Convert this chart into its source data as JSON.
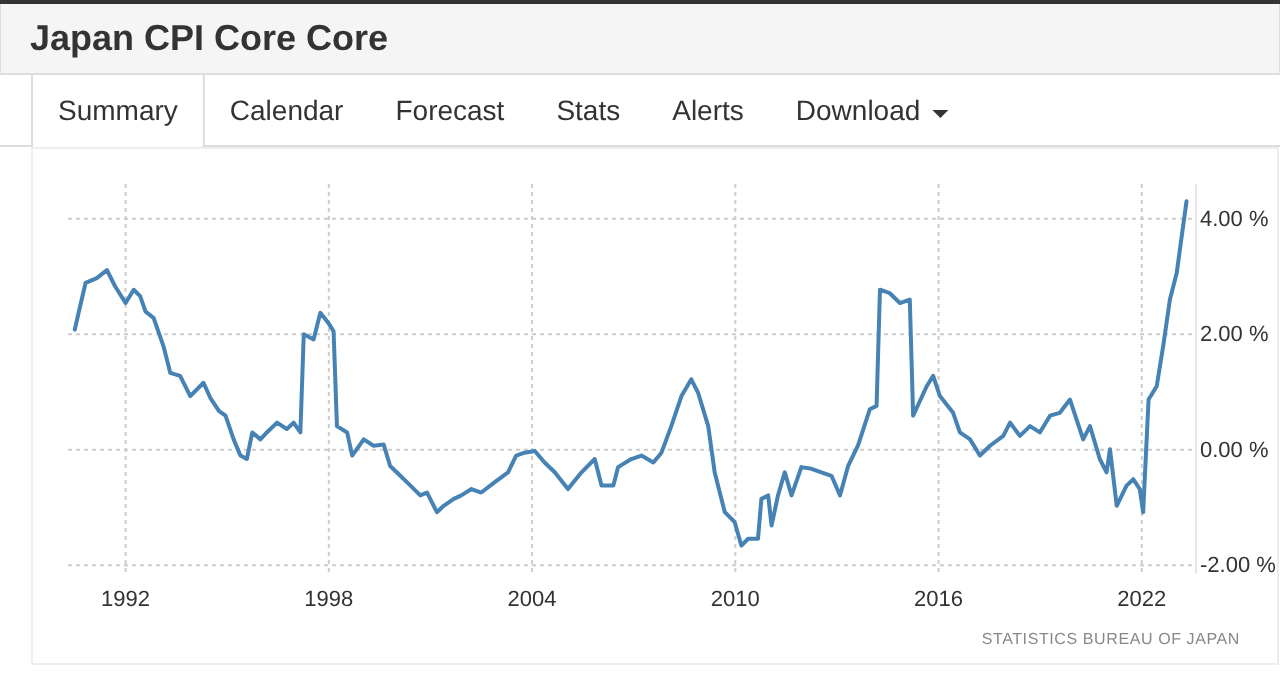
{
  "chart_data": {
    "type": "line",
    "title": "Japan CPI Core Core",
    "annotations": [
      "Summary",
      "Calendar",
      "Forecast",
      "Stats",
      "Alerts",
      "Download",
      "STATISTICS BUREAU OF JAPAN"
    ],
    "series": [
      {
        "color": "#4682b4",
        "x": [
          1990.5,
          1990.62,
          1990.82,
          1991.15,
          1991.45,
          1991.69,
          1992.0,
          1992.24,
          1992.43,
          1992.59,
          1992.83,
          1993.12,
          1993.32,
          1993.61,
          1993.91,
          1994.3,
          1994.5,
          1994.76,
          1994.95,
          1995.19,
          1995.39,
          1995.58,
          1995.74,
          1995.98,
          1996.17,
          1996.47,
          1996.76,
          1996.96,
          1997.16,
          1997.26,
          1997.55,
          1997.75,
          1997.98,
          1998.14,
          1998.24,
          1998.54,
          1998.69,
          1999.03,
          1999.32,
          1999.62,
          1999.81,
          2000.11,
          2000.41,
          2000.7,
          2000.9,
          2001.19,
          2001.39,
          2001.69,
          2001.91,
          2002.21,
          2002.5,
          2002.9,
          2003.29,
          2003.53,
          2003.78,
          2004.08,
          2004.37,
          2004.67,
          2005.06,
          2005.46,
          2005.85,
          2006.05,
          2006.4,
          2006.54,
          2006.93,
          2007.23,
          2007.58,
          2007.82,
          2008.11,
          2008.41,
          2008.7,
          2008.9,
          2009.2,
          2009.39,
          2009.69,
          2009.98,
          2010.18,
          2010.38,
          2010.67,
          2010.77,
          2010.97,
          2011.07,
          2011.26,
          2011.46,
          2011.66,
          2011.95,
          2012.25,
          2012.54,
          2012.84,
          2013.09,
          2013.33,
          2013.62,
          2013.97,
          2014.17,
          2014.27,
          2014.56,
          2014.86,
          2015.15,
          2015.25,
          2015.65,
          2015.84,
          2016.04,
          2016.43,
          2016.63,
          2016.93,
          2017.22,
          2017.52,
          2017.91,
          2018.11,
          2018.4,
          2018.7,
          2018.99,
          2019.29,
          2019.58,
          2019.88,
          2020.07,
          2020.27,
          2020.47,
          2020.76,
          2020.96,
          2021.06,
          2021.26,
          2021.55,
          2021.75,
          2021.94,
          2022.04,
          2022.2,
          2022.44,
          2022.63,
          2022.83,
          2023.03,
          2023.32
        ],
        "values": [
          2.08,
          2.39,
          2.89,
          2.97,
          3.11,
          2.83,
          2.54,
          2.77,
          2.66,
          2.39,
          2.28,
          1.79,
          1.33,
          1.28,
          0.93,
          1.16,
          0.9,
          0.67,
          0.59,
          0.18,
          -0.1,
          -0.16,
          0.3,
          0.18,
          0.3,
          0.47,
          0.36,
          0.47,
          0.3,
          2.0,
          1.91,
          2.37,
          2.2,
          2.05,
          0.41,
          0.3,
          -0.1,
          0.18,
          0.07,
          0.09,
          -0.28,
          -0.45,
          -0.62,
          -0.79,
          -0.74,
          -1.08,
          -0.97,
          -0.85,
          -0.79,
          -0.68,
          -0.74,
          -0.56,
          -0.39,
          -0.1,
          -0.05,
          -0.02,
          -0.22,
          -0.39,
          -0.68,
          -0.39,
          -0.16,
          -0.62,
          -0.62,
          -0.3,
          -0.16,
          -0.1,
          -0.22,
          -0.05,
          0.41,
          0.93,
          1.22,
          0.99,
          0.41,
          -0.39,
          -1.08,
          -1.25,
          -1.66,
          -1.54,
          -1.54,
          -0.85,
          -0.79,
          -1.31,
          -0.79,
          -0.39,
          -0.79,
          -0.3,
          -0.33,
          -0.39,
          -0.45,
          -0.79,
          -0.28,
          0.07,
          0.7,
          0.76,
          2.77,
          2.71,
          2.54,
          2.6,
          0.59,
          1.1,
          1.28,
          0.93,
          0.64,
          0.3,
          0.18,
          -0.1,
          0.07,
          0.24,
          0.47,
          0.24,
          0.41,
          0.3,
          0.59,
          0.64,
          0.87,
          0.53,
          0.18,
          0.41,
          -0.16,
          -0.39,
          0.01,
          -0.97,
          -0.62,
          -0.51,
          -0.68,
          -1.08,
          0.87,
          1.1,
          1.79,
          2.6,
          3.06,
          4.3
        ]
      }
    ],
    "xlim": [
      1990.3,
      2023.6
    ],
    "xticks": [
      1992,
      1998,
      2004,
      2010,
      2016,
      2022
    ],
    "ylim": [
      -2.15,
      4.6
    ],
    "yticks": [
      {
        "value": -2,
        "label": "-2.00 %"
      },
      {
        "value": 0,
        "label": "0.00 %"
      },
      {
        "value": 2,
        "label": "2.00 %"
      },
      {
        "value": 4,
        "label": "4.00 %"
      }
    ],
    "grid": true
  }
}
